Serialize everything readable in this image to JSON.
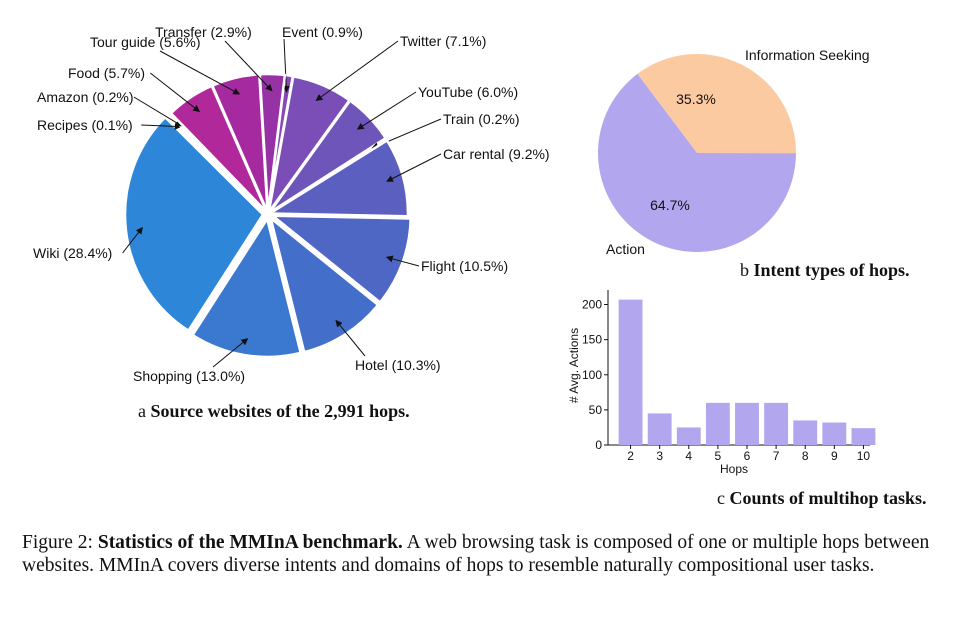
{
  "colors": {
    "magenta": "#b0289a",
    "purple": "#7d4bb5",
    "indigo": "#5b5fbf",
    "blue": "#3a73d0",
    "bright_blue": "#2e86d9",
    "lavender": "#b2a7ef",
    "peach": "#fccaa1"
  },
  "chart_data": [
    {
      "id": "a",
      "type": "pie",
      "exploded": true,
      "caption_prefix": "a",
      "caption": "Source websites of the 2,991 hops.",
      "slices": [
        {
          "label": "Event (0.9%)",
          "value": 0.9,
          "color": "#8848b6"
        },
        {
          "label": "Twitter (7.1%)",
          "value": 7.1,
          "color": "#7a4db7"
        },
        {
          "label": "YouTube (6.0%)",
          "value": 6.0,
          "color": "#6d55ba"
        },
        {
          "label": "Train (0.2%)",
          "value": 0.2,
          "color": "#655ab9"
        },
        {
          "label": "Car rental (9.2%)",
          "value": 9.2,
          "color": "#5b5fbf"
        },
        {
          "label": "Flight (10.5%)",
          "value": 10.5,
          "color": "#4e66c4"
        },
        {
          "label": "Hotel (10.3%)",
          "value": 10.3,
          "color": "#436ec9"
        },
        {
          "label": "Shopping (13.0%)",
          "value": 13.0,
          "color": "#3b78cf"
        },
        {
          "label": "Wiki (28.4%)",
          "value": 28.4,
          "color": "#2e86d9"
        },
        {
          "label": "Recipes (0.1%)",
          "value": 0.1,
          "color": "#b8299a"
        },
        {
          "label": "Amazon (0.2%)",
          "value": 0.2,
          "color": "#b52a9c"
        },
        {
          "label": "Food (5.7%)",
          "value": 5.7,
          "color": "#b0289a"
        },
        {
          "label": "Tour guide (5.6%)",
          "value": 5.6,
          "color": "#a52a9f"
        },
        {
          "label": "Transfer (2.9%)",
          "value": 2.9,
          "color": "#9731a6"
        }
      ]
    },
    {
      "id": "b",
      "type": "pie",
      "caption_prefix": "b",
      "caption": "Intent types of hops.",
      "slices": [
        {
          "label": "Information Seeking",
          "value": 35.3,
          "pct_label": "35.3%",
          "color": "#fccaa1"
        },
        {
          "label": "Action",
          "value": 64.7,
          "pct_label": "64.7%",
          "color": "#b2a7ef"
        }
      ]
    },
    {
      "id": "c",
      "type": "bar",
      "caption_prefix": "c",
      "caption": "Counts of multihop tasks.",
      "categories": [
        "2",
        "3",
        "4",
        "5",
        "6",
        "7",
        "8",
        "9",
        "10"
      ],
      "values": [
        207,
        45,
        25,
        60,
        60,
        60,
        35,
        32,
        24
      ],
      "xlabel": "Hops",
      "ylabel": "# Avg. Actions",
      "ylim": [
        0,
        215
      ],
      "yticks": [
        "0",
        "50",
        "100",
        "150",
        "200"
      ],
      "ytick_values": [
        0,
        50,
        100,
        150,
        200
      ],
      "bar_color": "#b2a7ef"
    }
  ],
  "figure_caption": {
    "label": "Figure 2:",
    "title": "Statistics of the MMInA benchmark.",
    "text": "A web browsing task is composed of one or multiple hops between websites. MMInA covers diverse intents and domains of hops to resemble naturally compositional user tasks."
  }
}
